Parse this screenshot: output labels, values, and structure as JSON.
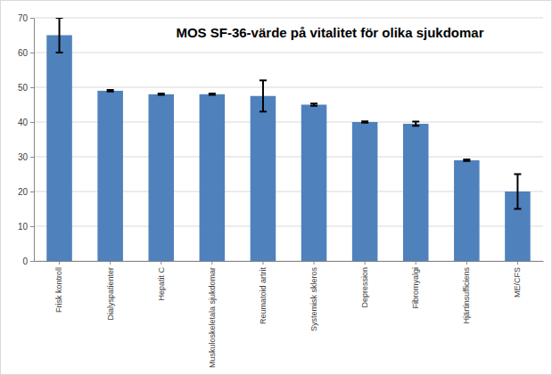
{
  "chart_data": {
    "type": "bar",
    "title": "MOS SF-36-värde på vitalitet för olika sjukdomar",
    "categories": [
      "Frisk kontroll",
      "Dialyspatienter",
      "Hepatit C",
      "Muskuloskeletala sjukdomar",
      "Reumatoid artrit",
      "Systemisk skleros",
      "Depression",
      "Fibromyalgi",
      "Hjärtinsufficiens",
      "ME/CFS"
    ],
    "values": [
      65,
      49,
      48,
      48,
      47.5,
      45,
      40,
      39.5,
      29,
      20
    ],
    "errors": [
      5,
      0.2,
      0.2,
      0.2,
      4.5,
      0.3,
      0.2,
      0.6,
      0.2,
      5
    ],
    "color": "#4f81bd",
    "ylim": [
      0,
      70
    ],
    "yticks": [
      0,
      10,
      20,
      30,
      40,
      50,
      60,
      70
    ],
    "grid": true
  }
}
